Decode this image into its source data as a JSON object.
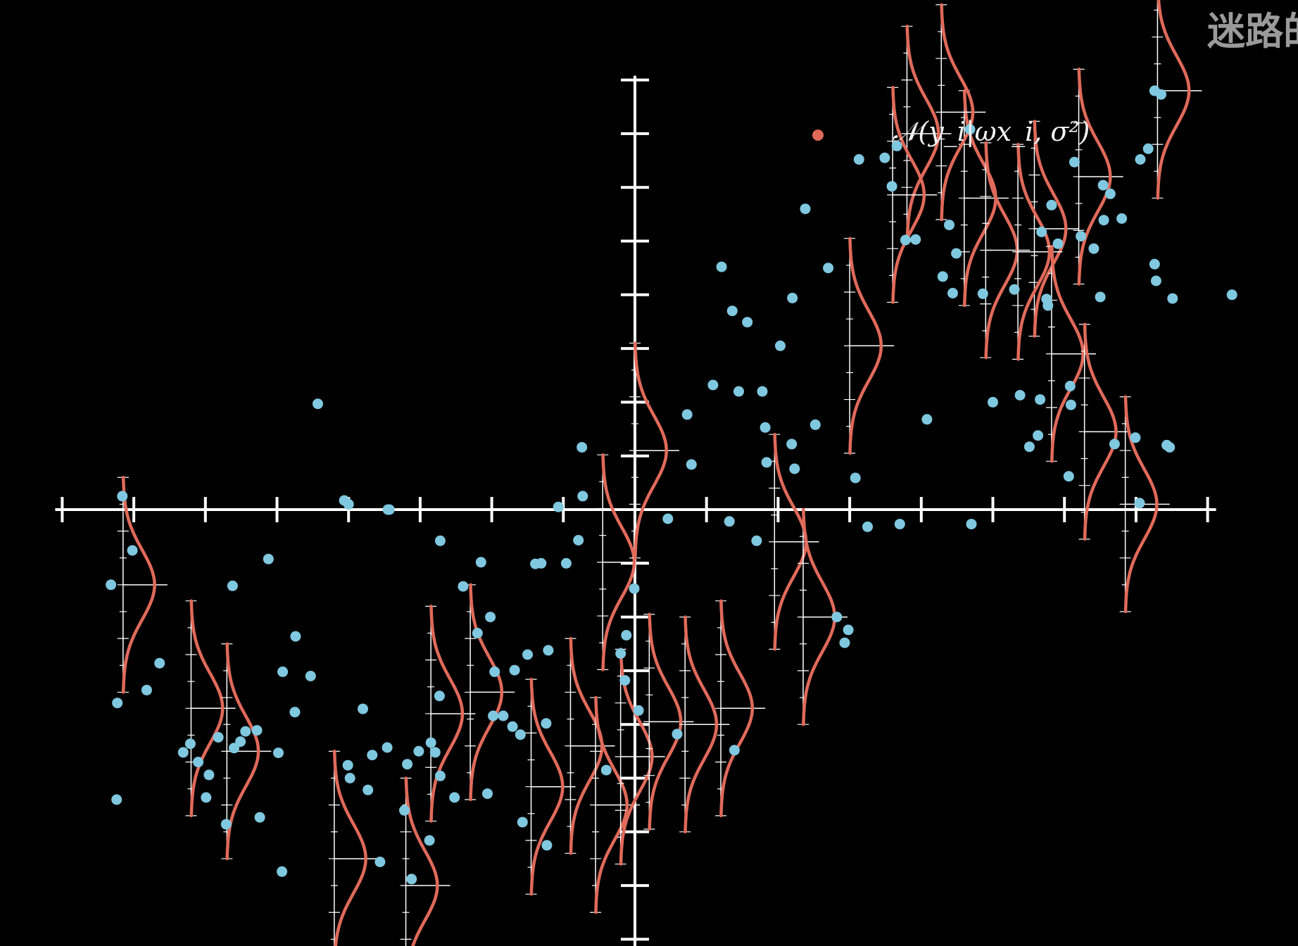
{
  "watermark": "迷路的",
  "colors": {
    "background": "#000000",
    "axis": "#ffffff",
    "points": "#7fc8e0",
    "gaussian": "#e06a5a",
    "legend_dot": "#e06a5a"
  },
  "chart_data": {
    "type": "scatter",
    "legend": {
      "marker": "red dot",
      "label": "𝒩(y_i|ωx_i, σ²)",
      "placement": "top-center"
    },
    "grid": false,
    "xlim": [
      -8,
      8
    ],
    "ylim": [
      -8,
      8
    ],
    "x_ticks": [
      -8,
      -7,
      -6,
      -5,
      -4,
      -3,
      -2,
      -1,
      0,
      1,
      2,
      3,
      4,
      5,
      6,
      7,
      8
    ],
    "y_ticks": [
      -8,
      -7,
      -6,
      -5,
      -4,
      -3,
      -2,
      -1,
      0,
      1,
      2,
      3,
      4,
      5,
      6,
      7,
      8
    ],
    "points": [
      [
        -7.16,
        0.25
      ],
      [
        -7.02,
        -0.76
      ],
      [
        -7.32,
        -1.4
      ],
      [
        -7.23,
        -3.6
      ],
      [
        -7.24,
        -5.4
      ],
      [
        -6.82,
        -3.36
      ],
      [
        -6.64,
        -2.86
      ],
      [
        -6.31,
        -4.52
      ],
      [
        -6.1,
        -4.7
      ],
      [
        -6.21,
        -4.36
      ],
      [
        -5.95,
        -4.94
      ],
      [
        -5.99,
        -5.36
      ],
      [
        -5.82,
        -4.24
      ],
      [
        -5.6,
        -4.44
      ],
      [
        -5.51,
        -4.32
      ],
      [
        -5.71,
        -5.86
      ],
      [
        -5.44,
        -4.13
      ],
      [
        -5.28,
        -4.11
      ],
      [
        -5.24,
        -5.73
      ],
      [
        -4.92,
        -3.02
      ],
      [
        -5.12,
        -0.92
      ],
      [
        -4.98,
        -4.53
      ],
      [
        -4.75,
        -3.77
      ],
      [
        -4.53,
        -3.1
      ],
      [
        -5.62,
        -1.42
      ],
      [
        -4.74,
        -2.36
      ],
      [
        -4.93,
        -6.74
      ],
      [
        -4.43,
        1.97
      ],
      [
        -4.01,
        -4.76
      ],
      [
        -4.06,
        0.17
      ],
      [
        -4.0,
        0.1
      ],
      [
        -3.98,
        -5.0
      ],
      [
        -3.67,
        -4.57
      ],
      [
        -3.8,
        -3.71
      ],
      [
        -3.73,
        -5.22
      ],
      [
        -3.56,
        -6.56
      ],
      [
        -3.22,
        -5.6
      ],
      [
        -3.02,
        -4.5
      ],
      [
        -2.85,
        -4.34
      ],
      [
        -2.87,
        -6.16
      ],
      [
        -2.79,
        -4.52
      ],
      [
        -3.18,
        -4.74
      ],
      [
        -3.12,
        -6.88
      ],
      [
        -2.73,
        -3.47
      ],
      [
        -2.72,
        -4.96
      ],
      [
        -3.46,
        -4.43
      ],
      [
        -3.43,
        0.0
      ],
      [
        -3.45,
        0.0
      ],
      [
        -2.72,
        -0.58
      ],
      [
        -2.52,
        -5.36
      ],
      [
        -2.4,
        -1.43
      ],
      [
        -2.2,
        -2.3
      ],
      [
        -2.15,
        -0.98
      ],
      [
        -2.06,
        -5.29
      ],
      [
        -2.02,
        -2.0
      ],
      [
        -1.96,
        -3.02
      ],
      [
        -1.98,
        -3.84
      ],
      [
        -1.84,
        -3.84
      ],
      [
        -1.71,
        -4.04
      ],
      [
        -1.68,
        -2.99
      ],
      [
        -1.6,
        -4.19
      ],
      [
        -1.5,
        -2.7
      ],
      [
        -1.57,
        -5.82
      ],
      [
        -1.39,
        -1.01
      ],
      [
        -1.24,
        -3.98
      ],
      [
        -1.21,
        -2.62
      ],
      [
        -1.23,
        -6.25
      ],
      [
        -1.31,
        -1.0
      ],
      [
        -1.07,
        0.05
      ],
      [
        -0.96,
        -1.0
      ],
      [
        -0.74,
        1.16
      ],
      [
        -0.79,
        -0.57
      ],
      [
        -0.73,
        0.25
      ],
      [
        -0.4,
        -4.85
      ],
      [
        -0.2,
        -2.68
      ],
      [
        -0.14,
        -3.18
      ],
      [
        0.05,
        -3.74
      ],
      [
        -0.01,
        -1.47
      ],
      [
        -0.12,
        -2.34
      ],
      [
        0.59,
        -4.18
      ],
      [
        0.46,
        -0.17
      ],
      [
        0.73,
        1.77
      ],
      [
        0.79,
        0.84
      ],
      [
        1.32,
        -0.22
      ],
      [
        1.36,
        3.7
      ],
      [
        1.39,
        -4.48
      ],
      [
        1.21,
        4.52
      ],
      [
        1.09,
        2.32
      ],
      [
        1.45,
        2.2
      ],
      [
        1.57,
        3.49
      ],
      [
        1.7,
        -0.58
      ],
      [
        1.78,
        2.2
      ],
      [
        1.82,
        1.53
      ],
      [
        1.84,
        0.88
      ],
      [
        2.03,
        3.05
      ],
      [
        2.2,
        3.94
      ],
      [
        2.23,
        0.76
      ],
      [
        2.19,
        1.22
      ],
      [
        2.38,
        5.6
      ],
      [
        2.52,
        1.58
      ],
      [
        2.7,
        4.5
      ],
      [
        2.82,
        -2.0
      ],
      [
        2.93,
        -2.48
      ],
      [
        2.98,
        -2.24
      ],
      [
        3.08,
        0.59
      ],
      [
        3.13,
        6.52
      ],
      [
        3.25,
        -0.32
      ],
      [
        3.49,
        6.55
      ],
      [
        3.66,
        6.77
      ],
      [
        3.59,
        6.02
      ],
      [
        3.7,
        -0.27
      ],
      [
        3.78,
        5.02
      ],
      [
        3.92,
        5.03
      ],
      [
        4.08,
        1.68
      ],
      [
        4.3,
        4.34
      ],
      [
        4.39,
        5.3
      ],
      [
        4.49,
        4.77
      ],
      [
        4.44,
        4.03
      ],
      [
        4.68,
        7.08
      ],
      [
        4.86,
        4.02
      ],
      [
        4.7,
        -0.27
      ],
      [
        5.0,
        2.0
      ],
      [
        5.38,
        2.13
      ],
      [
        5.51,
        1.17
      ],
      [
        5.82,
        5.67
      ],
      [
        5.77,
        3.8
      ],
      [
        5.63,
        1.38
      ],
      [
        5.75,
        3.92
      ],
      [
        5.91,
        4.95
      ],
      [
        5.66,
        2.05
      ],
      [
        5.68,
        5.17
      ],
      [
        6.14,
        6.47
      ],
      [
        6.08,
        2.3
      ],
      [
        6.23,
        5.09
      ],
      [
        6.06,
        0.62
      ],
      [
        6.09,
        1.95
      ],
      [
        6.5,
        3.96
      ],
      [
        6.41,
        4.86
      ],
      [
        6.64,
        5.88
      ],
      [
        6.55,
        5.39
      ],
      [
        6.7,
        1.22
      ],
      [
        6.8,
        5.42
      ],
      [
        6.54,
        6.04
      ],
      [
        6.99,
        1.34
      ],
      [
        7.05,
        0.12
      ],
      [
        7.26,
        4.57
      ],
      [
        7.17,
        6.72
      ],
      [
        7.35,
        7.73
      ],
      [
        7.51,
        3.93
      ],
      [
        7.43,
        1.2
      ],
      [
        7.26,
        7.8
      ],
      [
        7.06,
        6.52
      ],
      [
        7.47,
        1.16
      ],
      [
        8.34,
        4.0
      ],
      [
        7.28,
        4.26
      ],
      [
        5.3,
        4.1
      ]
    ],
    "gaussians": [
      [
        -7.15,
        -1.4
      ],
      [
        -6.2,
        -3.7
      ],
      [
        -5.7,
        -4.5
      ],
      [
        -4.2,
        -6.5
      ],
      [
        -3.2,
        -7.0
      ],
      [
        -2.85,
        -3.8
      ],
      [
        -2.3,
        -3.4
      ],
      [
        -1.45,
        -5.16
      ],
      [
        -0.9,
        -4.4
      ],
      [
        -0.55,
        -5.5
      ],
      [
        -0.45,
        -0.98
      ],
      [
        -0.2,
        -4.6
      ],
      [
        0.2,
        -3.95
      ],
      [
        0.7,
        -4.0
      ],
      [
        0.0,
        1.1
      ],
      [
        1.2,
        -3.7
      ],
      [
        1.95,
        -0.6
      ],
      [
        2.35,
        -2.0
      ],
      [
        4.6,
        5.8
      ],
      [
        4.28,
        7.4
      ],
      [
        3.8,
        7.0
      ],
      [
        3.0,
        3.05
      ],
      [
        3.6,
        5.86
      ],
      [
        5.58,
        5.23
      ],
      [
        4.9,
        4.83
      ],
      [
        5.35,
        4.8
      ],
      [
        5.82,
        2.9
      ],
      [
        6.28,
        1.45
      ],
      [
        6.2,
        6.2
      ],
      [
        7.3,
        7.8
      ],
      [
        6.85,
        0.1
      ]
    ],
    "gaussian_sigma": 1.0
  }
}
